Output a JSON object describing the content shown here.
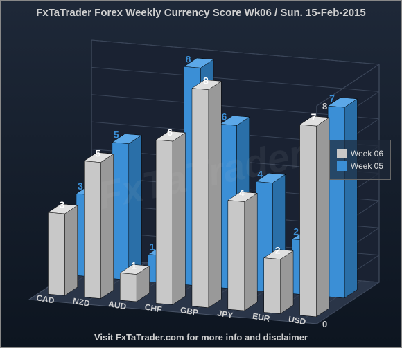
{
  "chart": {
    "type": "3d-bar",
    "title": "FxTaTrader Forex Weekly Currency Score  Wk06 / Sun. 15-Feb-2015",
    "footer": "Visit FxTaTrader.com for more info and disclaimer",
    "watermark": "FxTaTrader",
    "background_gradient": [
      "#1e2838",
      "#0d1520"
    ],
    "border_color": "#888888",
    "categories": [
      "CAD",
      "NZD",
      "AUD",
      "CHF",
      "GBP",
      "JPY",
      "EUR",
      "USD"
    ],
    "series": [
      {
        "name": "Week 05",
        "color": "#3b8fd6",
        "color_side": "#2a6fa8",
        "color_top": "#5ca8e8",
        "values": [
          3,
          5,
          1,
          8,
          6,
          4,
          2,
          7
        ]
      },
      {
        "name": "Week 06",
        "color": "#c8c8c8",
        "color_side": "#999999",
        "color_top": "#e0e0e0",
        "values": [
          3,
          5,
          1,
          6,
          8,
          4,
          2,
          7
        ]
      }
    ],
    "ylim": [
      0,
      8
    ],
    "ytick_step": 1,
    "label_fontsize": 12,
    "value_fontsize": 14,
    "title_fontsize": 15,
    "floor_color": "#2a3548",
    "floor_edge": "#4a5568",
    "wall_color": "#1a2232",
    "grid_color": "#3a4558"
  },
  "legend": {
    "items": [
      {
        "label": "Week 06",
        "color": "#c8c8c8"
      },
      {
        "label": "Week 05",
        "color": "#3b8fd6"
      }
    ]
  }
}
